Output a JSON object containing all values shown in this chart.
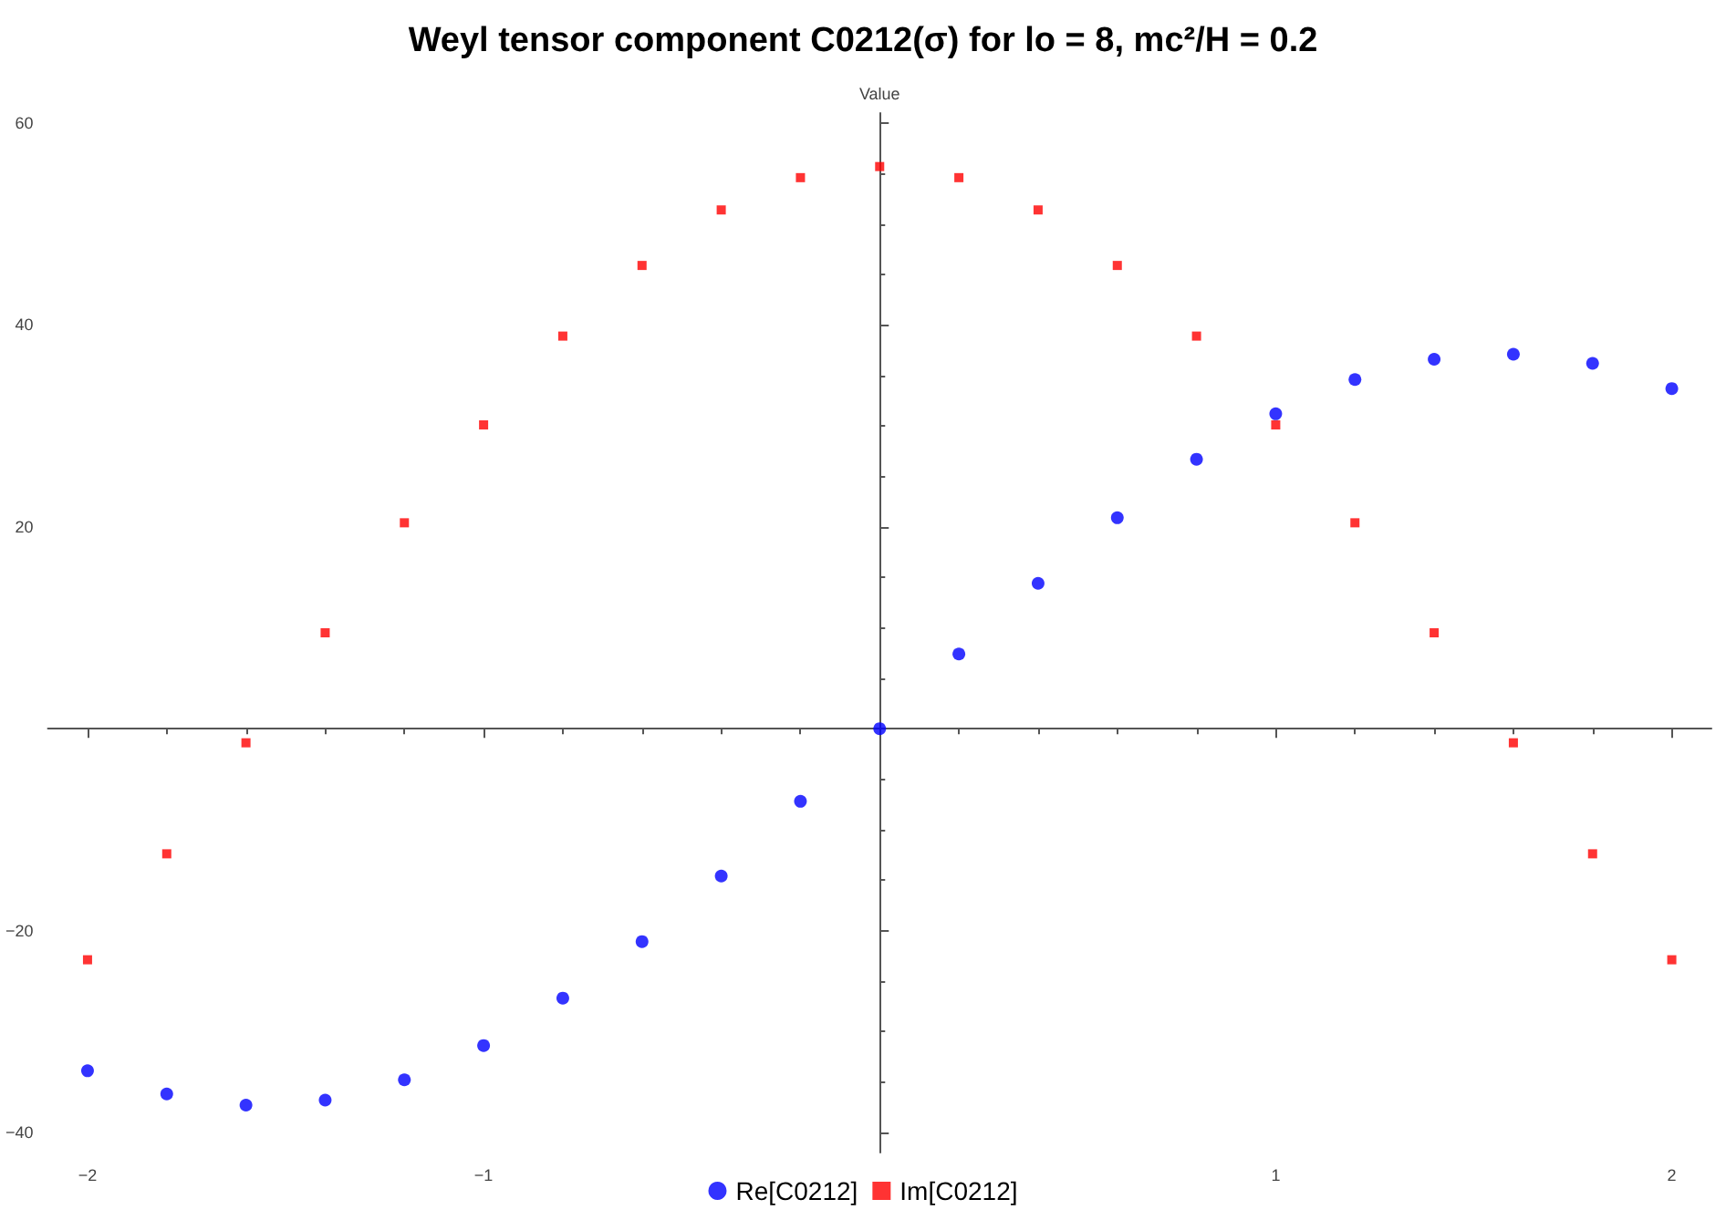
{
  "chart_data": {
    "type": "scatter",
    "title": "Weyl tensor component C0212(σ) for lo = 8, mc²/H = 0.2",
    "ylabel": "Value",
    "x": [
      -2,
      -1.8,
      -1.6,
      -1.4,
      -1.2,
      -1,
      -0.8,
      -0.6,
      -0.4,
      -0.2,
      0,
      0.2,
      0.4,
      0.6,
      0.8,
      1,
      1.2,
      1.4,
      1.6,
      1.8,
      2
    ],
    "series": [
      {
        "name": "Re[C0212]",
        "color": "#0000ff",
        "marker": "circle",
        "values": [
          -33.9,
          -36.2,
          -37.3,
          -36.8,
          -34.8,
          -31.4,
          -26.7,
          -21.1,
          -14.6,
          -7.2,
          0,
          7.4,
          14.4,
          20.9,
          26.7,
          31.2,
          34.6,
          36.6,
          37.1,
          36.2,
          33.7
        ]
      },
      {
        "name": "Im[C0212]",
        "color": "#ff0000",
        "marker": "square",
        "values": [
          -22.9,
          -12.4,
          -1.4,
          9.5,
          20.4,
          30.1,
          38.9,
          45.9,
          51.4,
          54.6,
          55.7,
          54.6,
          51.4,
          45.9,
          38.9,
          30.1,
          20.4,
          9.5,
          -1.4,
          -12.4,
          -22.9
        ]
      }
    ],
    "xlim": [
      -2.1,
      2.1
    ],
    "xticks": [
      -2,
      -1,
      1,
      2
    ],
    "ylim": [
      -42,
      61
    ],
    "yticks": [
      -40,
      -20,
      20,
      40,
      60
    ],
    "grid": false,
    "legend": "bottom"
  }
}
